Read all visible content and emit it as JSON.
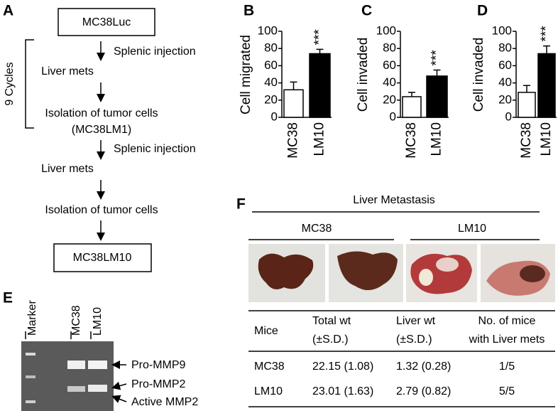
{
  "panel_a": {
    "letter": "A",
    "cycles": "9 Cycles",
    "steps": [
      "MC38Luc",
      "Splenic injection",
      "Liver mets",
      "Isolation of tumor cells",
      "(MC38LM1)",
      "Splenic injection",
      "Liver mets",
      "Isolation of tumor cells",
      "MC38LM10"
    ]
  },
  "chart_data": [
    {
      "type": "bar",
      "panel": "B",
      "ylabel": "Cell migrated",
      "categories": [
        "MC38",
        "LM10"
      ],
      "values": [
        32,
        74
      ],
      "errors": [
        9,
        5
      ],
      "colors": [
        "#ffffff",
        "#000000"
      ],
      "annotation": "***",
      "ylim": [
        0,
        100
      ],
      "yticks": [
        0,
        20,
        40,
        60,
        80,
        100
      ]
    },
    {
      "type": "bar",
      "panel": "C",
      "ylabel": "Cell invaded",
      "categories": [
        "MC38",
        "LM10"
      ],
      "values": [
        24,
        48
      ],
      "errors": [
        5,
        7
      ],
      "colors": [
        "#ffffff",
        "#000000"
      ],
      "annotation": "***",
      "ylim": [
        0,
        100
      ],
      "yticks": [
        0,
        20,
        40,
        60,
        80,
        100
      ]
    },
    {
      "type": "bar",
      "panel": "D",
      "ylabel": "Cell invaded",
      "categories": [
        "MC38",
        "LM10"
      ],
      "values": [
        29,
        74
      ],
      "errors": [
        8,
        9
      ],
      "colors": [
        "#ffffff",
        "#000000"
      ],
      "annotation": "***",
      "ylim": [
        0,
        100
      ],
      "yticks": [
        0,
        20,
        40,
        60,
        80,
        100
      ]
    }
  ],
  "panel_e": {
    "letter": "E",
    "lanes": [
      "Marker",
      "MC38",
      "LM10"
    ],
    "bands": [
      "Pro-MMP9",
      "Pro-MMP2",
      "Active MMP2"
    ]
  },
  "panel_f": {
    "letter": "F",
    "title": "Liver Metastasis",
    "groups": [
      "MC38",
      "LM10"
    ],
    "table": {
      "header": [
        [
          "Mice"
        ],
        [
          "Total wt",
          "(±S.D.)"
        ],
        [
          "Liver wt",
          "(±S.D.)"
        ],
        [
          "No. of mice",
          "with Liver mets"
        ]
      ],
      "rows": [
        [
          "MC38",
          "22.15 (1.08)",
          "1.32 (0.28)",
          "1/5"
        ],
        [
          "LM10",
          "23.01 (1.63)",
          "2.79 (0.82)",
          "5/5"
        ]
      ]
    }
  }
}
